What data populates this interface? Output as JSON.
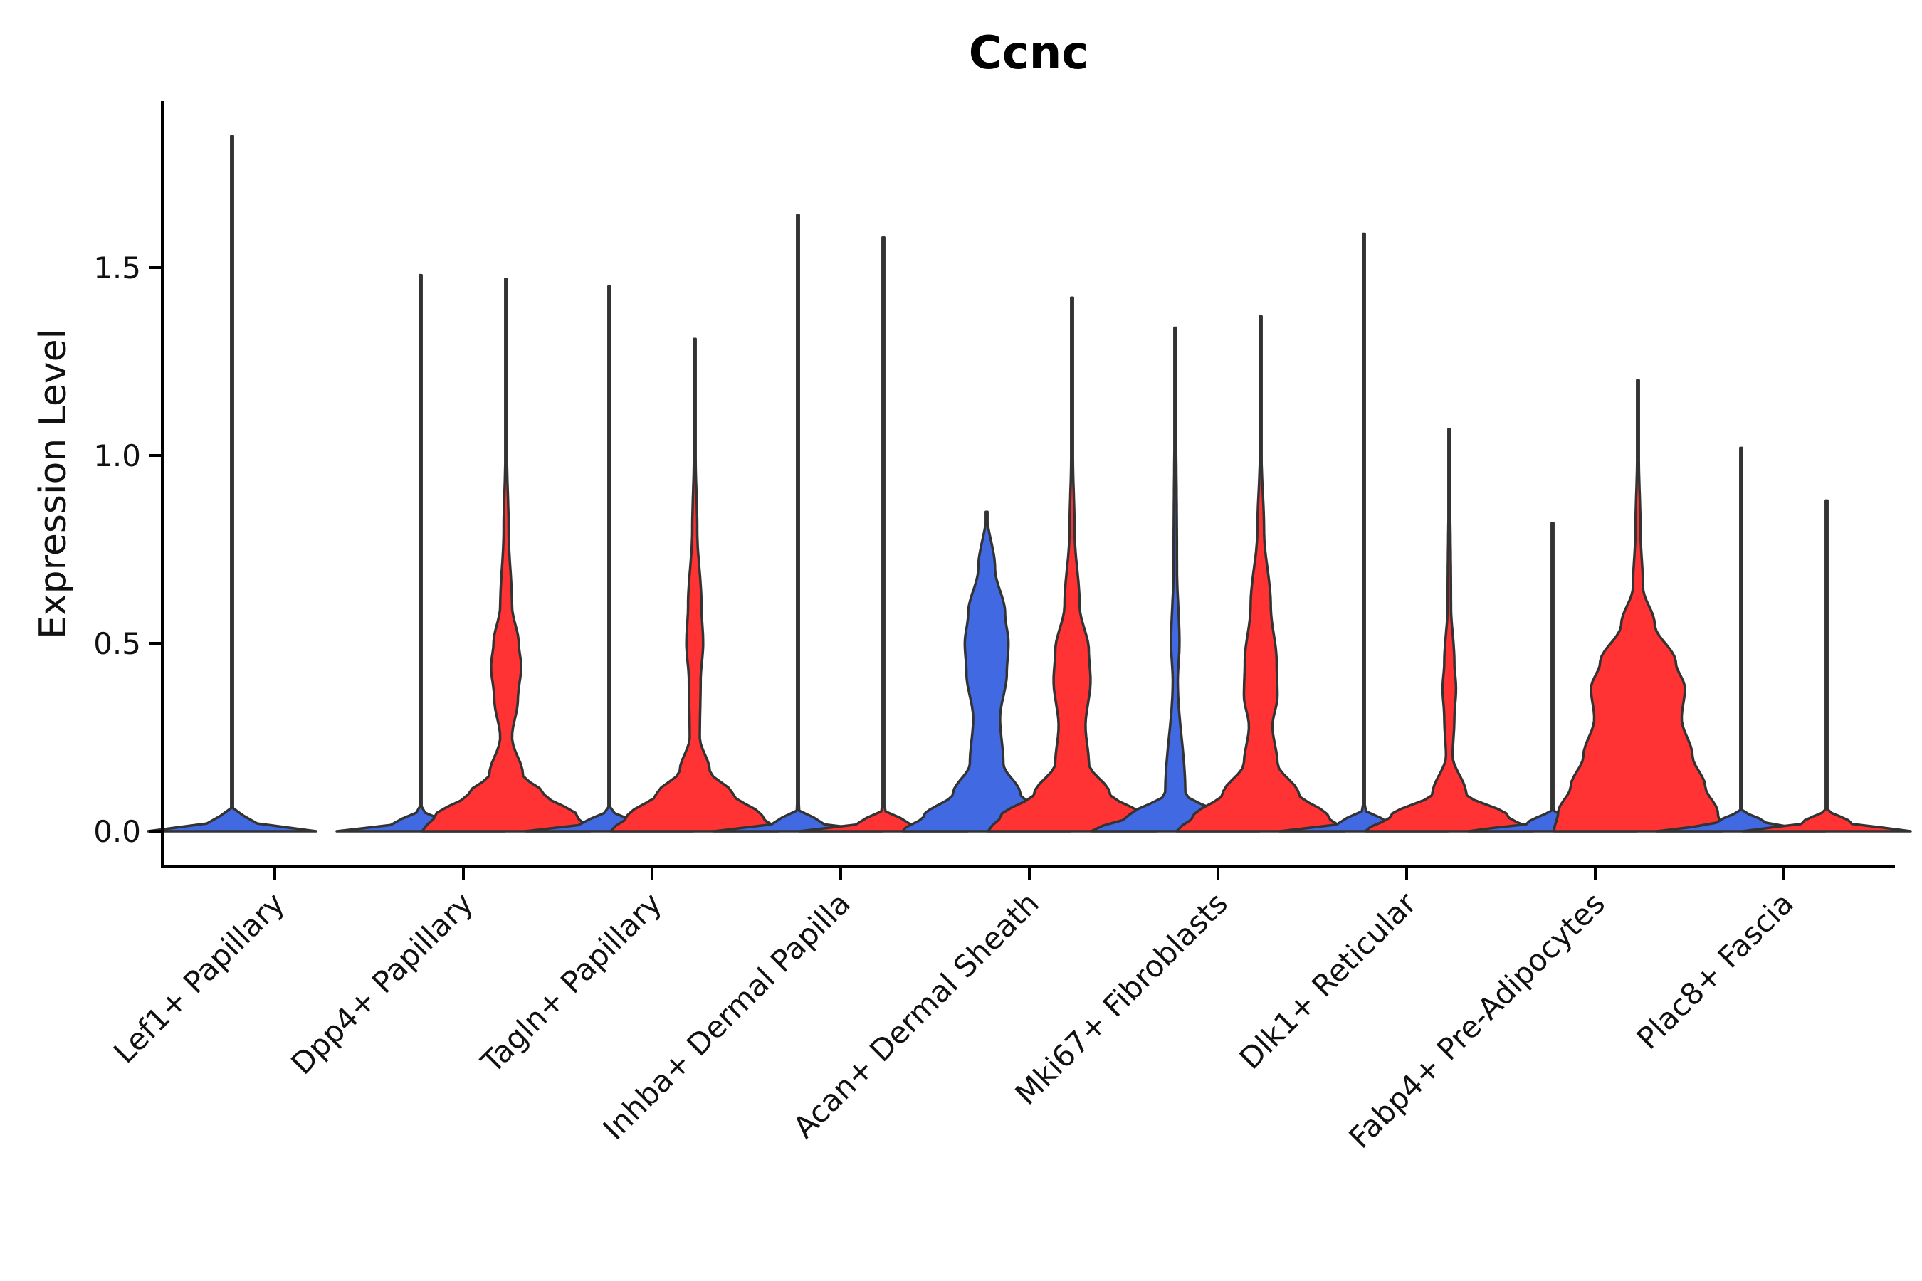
{
  "chart_data": {
    "type": "violin",
    "title": "Ccnc",
    "xlabel": "",
    "ylabel": "Expression Level",
    "ylim": [
      -0.09,
      1.94
    ],
    "yticks": [
      0.0,
      0.5,
      1.0,
      1.5
    ],
    "ytick_labels": [
      "0.0",
      "0.5",
      "1.0",
      "1.5"
    ],
    "categories": [
      "Lef1+ Papillary",
      "Dpp4+ Papillary",
      "Tagln+ Papillary",
      "Inhba+ Dermal Papilla",
      "Acan+ Dermal Sheath",
      "Mki67+ Fibroblasts",
      "Dlk1+ Reticular",
      "Fabp4+ Pre-Adipocytes",
      "Plac8+ Fascia"
    ],
    "colors": {
      "group_1": "#4169E1",
      "group_2": "#FF3333",
      "outline": "#333333"
    },
    "series": [
      {
        "name": "group_1",
        "max_values": [
          1.85,
          1.48,
          1.45,
          1.64,
          0.85,
          1.34,
          1.59,
          0.82,
          1.02
        ],
        "density_profiles": [
          [
            [
              0,
              1.0
            ],
            [
              0.02,
              0.3
            ],
            [
              0.06,
              0.0
            ]
          ],
          [
            [
              0,
              1.0
            ],
            [
              0.02,
              0.3
            ],
            [
              0.06,
              0.0
            ]
          ],
          [
            [
              0,
              1.0
            ],
            [
              0.02,
              0.3
            ],
            [
              0.06,
              0.0
            ]
          ],
          [
            [
              0,
              1.0
            ],
            [
              0.02,
              0.3
            ],
            [
              0.06,
              0.0
            ]
          ],
          [
            [
              0,
              1.0
            ],
            [
              0.04,
              0.75
            ],
            [
              0.1,
              0.4
            ],
            [
              0.18,
              0.2
            ],
            [
              0.3,
              0.16
            ],
            [
              0.42,
              0.24
            ],
            [
              0.5,
              0.26
            ],
            [
              0.58,
              0.22
            ],
            [
              0.7,
              0.1
            ],
            [
              0.85,
              0.0
            ]
          ],
          [
            [
              0,
              1.0
            ],
            [
              0.04,
              0.55
            ],
            [
              0.1,
              0.12
            ],
            [
              0.4,
              0.03
            ],
            [
              0.5,
              0.05
            ],
            [
              0.7,
              0.02
            ],
            [
              1.34,
              0.0
            ]
          ],
          [
            [
              0,
              1.0
            ],
            [
              0.02,
              0.3
            ],
            [
              0.06,
              0.0
            ]
          ],
          [
            [
              0,
              1.0
            ],
            [
              0.02,
              0.3
            ],
            [
              0.06,
              0.0
            ]
          ],
          [
            [
              0,
              1.0
            ],
            [
              0.02,
              0.3
            ],
            [
              0.06,
              0.0
            ]
          ]
        ]
      },
      {
        "name": "group_2",
        "max_values": [
          null,
          1.47,
          1.31,
          1.58,
          1.42,
          1.37,
          1.07,
          1.2,
          0.88
        ],
        "density_profiles": [
          null,
          [
            [
              0,
              1.0
            ],
            [
              0.04,
              0.85
            ],
            [
              0.1,
              0.45
            ],
            [
              0.15,
              0.2
            ],
            [
              0.25,
              0.07
            ],
            [
              0.35,
              0.14
            ],
            [
              0.44,
              0.18
            ],
            [
              0.5,
              0.15
            ],
            [
              0.6,
              0.07
            ],
            [
              0.8,
              0.03
            ],
            [
              1.0,
              0.01
            ],
            [
              1.47,
              0.0
            ]
          ],
          [
            [
              0,
              1.0
            ],
            [
              0.04,
              0.8
            ],
            [
              0.1,
              0.45
            ],
            [
              0.16,
              0.18
            ],
            [
              0.25,
              0.06
            ],
            [
              0.4,
              0.07
            ],
            [
              0.5,
              0.1
            ],
            [
              0.6,
              0.08
            ],
            [
              0.8,
              0.03
            ],
            [
              1.0,
              0.01
            ],
            [
              1.31,
              0.0
            ]
          ],
          [
            [
              0,
              1.0
            ],
            [
              0.02,
              0.3
            ],
            [
              0.06,
              0.0
            ]
          ],
          [
            [
              0,
              1.0
            ],
            [
              0.04,
              0.85
            ],
            [
              0.1,
              0.45
            ],
            [
              0.18,
              0.2
            ],
            [
              0.28,
              0.16
            ],
            [
              0.4,
              0.22
            ],
            [
              0.48,
              0.2
            ],
            [
              0.6,
              0.09
            ],
            [
              0.8,
              0.03
            ],
            [
              1.0,
              0.01
            ],
            [
              1.42,
              0.0
            ]
          ],
          [
            [
              0,
              1.0
            ],
            [
              0.04,
              0.8
            ],
            [
              0.1,
              0.45
            ],
            [
              0.18,
              0.2
            ],
            [
              0.28,
              0.14
            ],
            [
              0.36,
              0.2
            ],
            [
              0.45,
              0.19
            ],
            [
              0.6,
              0.12
            ],
            [
              0.8,
              0.04
            ],
            [
              1.0,
              0.01
            ],
            [
              1.37,
              0.0
            ]
          ],
          [
            [
              0,
              1.0
            ],
            [
              0.04,
              0.7
            ],
            [
              0.1,
              0.2
            ],
            [
              0.2,
              0.04
            ],
            [
              0.3,
              0.06
            ],
            [
              0.38,
              0.08
            ],
            [
              0.45,
              0.06
            ],
            [
              0.6,
              0.02
            ],
            [
              1.07,
              0.0
            ]
          ],
          [
            [
              0,
              1.0
            ],
            [
              0.05,
              0.95
            ],
            [
              0.12,
              0.8
            ],
            [
              0.2,
              0.65
            ],
            [
              0.3,
              0.52
            ],
            [
              0.38,
              0.56
            ],
            [
              0.45,
              0.45
            ],
            [
              0.55,
              0.2
            ],
            [
              0.65,
              0.06
            ],
            [
              0.8,
              0.03
            ],
            [
              1.0,
              0.01
            ],
            [
              1.2,
              0.0
            ]
          ],
          [
            [
              0,
              1.0
            ],
            [
              0.02,
              0.3
            ],
            [
              0.06,
              0.0
            ]
          ]
        ]
      }
    ],
    "grid": false,
    "legend": "none"
  }
}
